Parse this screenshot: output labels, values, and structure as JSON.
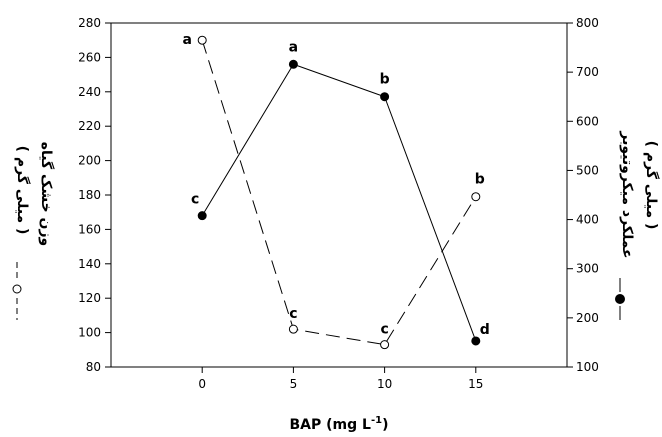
{
  "chart_data": {
    "type": "line",
    "x": [
      0,
      5,
      10,
      15
    ],
    "x_ticks": [
      "0",
      "5",
      "10",
      "15"
    ],
    "xlim": [
      -5,
      20
    ],
    "xlabel": {
      "main": "BAP (mg L",
      "sup": "-1",
      "tail": ")"
    },
    "left_axis": {
      "ylim": [
        80,
        280
      ],
      "ticks": [
        "80",
        "100",
        "120",
        "140",
        "160",
        "180",
        "200",
        "220",
        "240",
        "260",
        "280"
      ],
      "label_line1": "وزن خشک گیاه",
      "label_line2": "( میلی گرم )"
    },
    "right_axis": {
      "ylim": [
        100,
        800
      ],
      "ticks": [
        "100",
        "200",
        "300",
        "400",
        "500",
        "600",
        "700",
        "800"
      ],
      "label_line1": "عملکرد میکروتیوبر",
      "label_line2": "( میلی گرم )"
    },
    "series": [
      {
        "axis": "left",
        "style": "dashed",
        "marker": "open-circle",
        "values": [
          270,
          102,
          93,
          179
        ],
        "labels": [
          "a",
          "c",
          "c",
          "b"
        ]
      },
      {
        "axis": "right",
        "style": "solid",
        "marker": "filled-circle",
        "values": [
          408,
          716,
          650,
          153
        ],
        "labels": [
          "c",
          "a",
          "b",
          "d"
        ]
      }
    ],
    "grid": false
  }
}
